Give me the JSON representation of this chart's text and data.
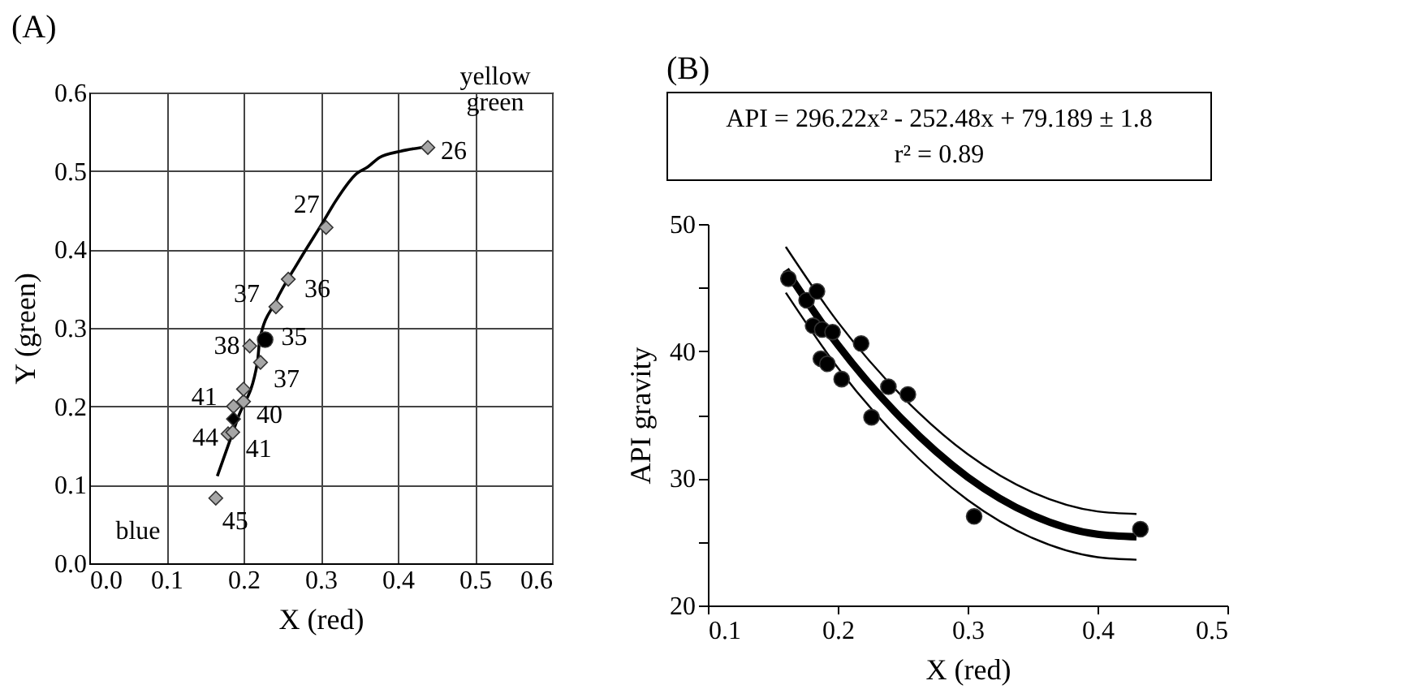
{
  "chart_data": [
    {
      "type": "scatter",
      "title": "(A)",
      "xlabel": "X (red)",
      "ylabel": "Y (green)",
      "xlim": [
        0,
        0.6
      ],
      "ylim": [
        0,
        0.6
      ],
      "xticks": [
        {
          "value": 0,
          "label": "0.0"
        },
        0.1,
        0.2,
        0.3,
        0.4,
        0.5,
        0.6
      ],
      "yticks": [
        {
          "value": 0,
          "label": "0.0"
        },
        0.1,
        0.2,
        0.3,
        0.4,
        0.5,
        0.6
      ],
      "grid": true,
      "series": [
        {
          "type": "line",
          "color": "#000000",
          "x": [
            0.166,
            0.193,
            0.218,
            0.221,
            0.242,
            0.271,
            0.305,
            0.319,
            0.347,
            0.361,
            0.376,
            0.403,
            0.431
          ],
          "values": [
            0.111,
            0.186,
            0.256,
            0.285,
            0.334,
            0.384,
            0.438,
            0.461,
            0.497,
            0.505,
            0.517,
            0.525,
            0.53
          ]
        },
        {
          "marker": "diamond",
          "color": "#a6a6a6",
          "x": [
            0.164,
            0.18,
            0.186,
            0.187,
            0.2,
            0.2,
            0.222,
            0.208,
            0.242,
            0.258,
            0.307,
            0.439
          ],
          "values": [
            0.083,
            0.165,
            0.167,
            0.2,
            0.206,
            0.222,
            0.256,
            0.277,
            0.327,
            0.362,
            0.428,
            0.53
          ]
        },
        {
          "marker": "diamond",
          "color": "#000000",
          "x": [
            0.187
          ],
          "values": [
            0.184
          ]
        },
        {
          "marker": "circle",
          "color": "#000000",
          "x": [
            0.228
          ],
          "values": [
            0.285
          ]
        }
      ],
      "annotations": [
        {
          "text": "26",
          "x": 0.439,
          "y": 0.53
        },
        {
          "text": "27",
          "x": 0.307,
          "y": 0.428
        },
        {
          "text": "37",
          "x": 0.242,
          "y": 0.327
        },
        {
          "text": "36",
          "x": 0.258,
          "y": 0.362
        },
        {
          "text": "38",
          "x": 0.208,
          "y": 0.277
        },
        {
          "text": "35",
          "x": 0.228,
          "y": 0.285
        },
        {
          "text": "37",
          "x": 0.222,
          "y": 0.256
        },
        {
          "text": "41",
          "x": 0.187,
          "y": 0.2
        },
        {
          "text": "40",
          "x": 0.2,
          "y": 0.206
        },
        {
          "text": "44",
          "x": 0.18,
          "y": 0.165
        },
        {
          "text": "41",
          "x": 0.186,
          "y": 0.167
        },
        {
          "text": "45",
          "x": 0.164,
          "y": 0.083
        },
        "blue",
        "yellow green"
      ]
    },
    {
      "type": "scatter",
      "title": "(B)",
      "xlabel": "X (red)",
      "ylabel": "API gravity",
      "xlim": [
        0.1,
        0.5
      ],
      "ylim": [
        20,
        50
      ],
      "xticks": [
        0.1,
        0.2,
        0.3,
        0.4,
        0.5
      ],
      "yticks": [
        20,
        {
          "value": 25,
          "label": null
        },
        30,
        {
          "value": 35,
          "label": null
        },
        40,
        {
          "value": 45,
          "label": null
        },
        50
      ],
      "series": [
        {
          "type": "line",
          "color": "#000000",
          "x": [
            0.16,
            0.2,
            0.25,
            0.3,
            0.35,
            0.4,
            0.43
          ],
          "values": [
            46.4,
            40.5,
            34.6,
            30.1,
            27.1,
            25.6,
            25.4
          ]
        },
        {
          "type": "line",
          "color": "#000000",
          "x": [
            0.16,
            0.2,
            0.25,
            0.3,
            0.35,
            0.4,
            0.43
          ],
          "values": [
            44.6,
            38.7,
            32.8,
            28.3,
            25.3,
            23.8,
            23.6
          ]
        },
        {
          "type": "line",
          "color": "#000000",
          "x": [
            0.16,
            0.2,
            0.25,
            0.3,
            0.35,
            0.4,
            0.43
          ],
          "values": [
            48.2,
            42.3,
            36.4,
            31.9,
            28.9,
            27.4,
            27.2
          ]
        },
        {
          "marker": "circle",
          "color": "#000000",
          "x": [
            0.162,
            0.176,
            0.184,
            0.181,
            0.188,
            0.196,
            0.187,
            0.192,
            0.203,
            0.218,
            0.226,
            0.239,
            0.254,
            0.305,
            0.433
          ],
          "values": [
            45.7,
            44.0,
            44.7,
            42.0,
            41.7,
            41.5,
            39.4,
            39.0,
            37.8,
            40.6,
            34.8,
            37.2,
            36.6,
            27.0,
            26.0
          ]
        }
      ],
      "annotations": [
        "API = 296.22x² - 252.48x + 79.189 ± 1.8",
        "r² = 0.89"
      ]
    }
  ]
}
